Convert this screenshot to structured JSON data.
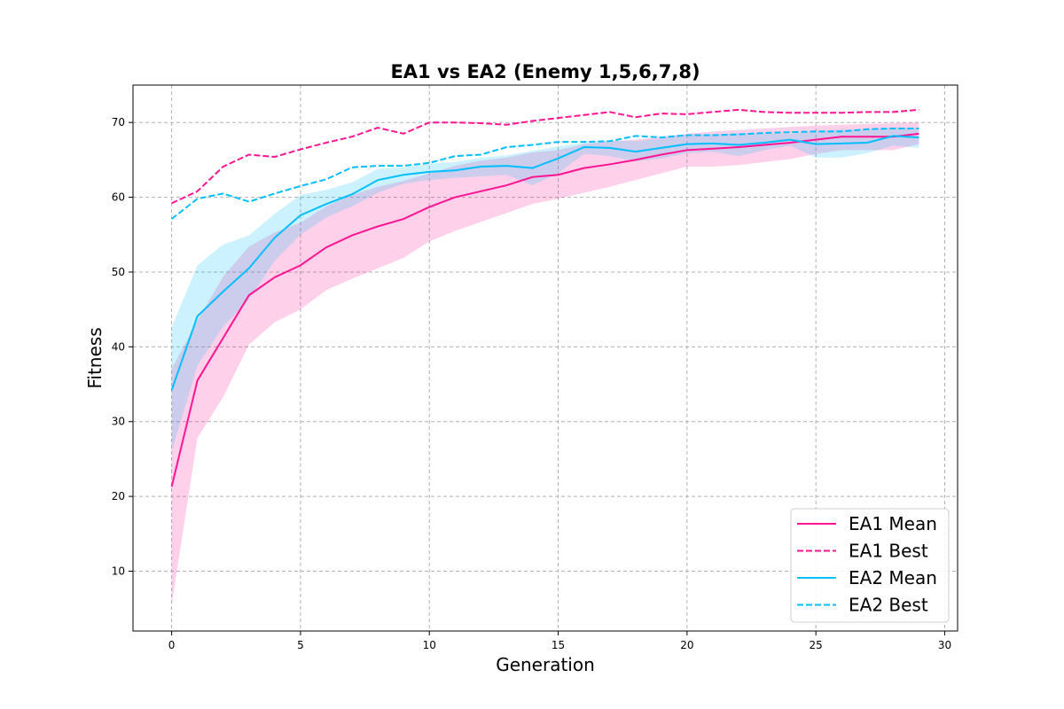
{
  "chart_data": {
    "type": "line",
    "title": "EA1 vs EA2 (Enemy 1,5,6,7,8)",
    "xlabel": "Generation",
    "ylabel": "Fitness",
    "xlim": [
      -1.5,
      30.5
    ],
    "ylim": [
      2,
      75
    ],
    "xticks": [
      0,
      5,
      10,
      15,
      20,
      25,
      30
    ],
    "yticks": [
      10,
      20,
      30,
      40,
      50,
      60,
      70
    ],
    "grid": true,
    "legend_position": "bottom-right",
    "x": [
      0,
      1,
      2,
      3,
      4,
      5,
      6,
      7,
      8,
      9,
      10,
      11,
      12,
      13,
      14,
      15,
      16,
      17,
      18,
      19,
      20,
      21,
      22,
      23,
      24,
      25,
      26,
      27,
      28,
      29
    ],
    "series": [
      {
        "name": "EA1 Mean",
        "style": "solid",
        "color": "#ff1493",
        "values": [
          21.3,
          35.5,
          41.2,
          46.9,
          49.3,
          50.9,
          53.3,
          54.9,
          56.1,
          57.1,
          58.7,
          60.0,
          60.8,
          61.6,
          62.7,
          63.0,
          63.9,
          64.4,
          65.0,
          65.7,
          66.3,
          66.5,
          66.7,
          67.0,
          67.3,
          67.7,
          68.1,
          68.1,
          68.1,
          68.5
        ],
        "band_low": [
          5.5,
          27.8,
          33.3,
          40.3,
          43.3,
          45.0,
          47.6,
          49.1,
          50.5,
          51.9,
          54.1,
          55.5,
          56.7,
          57.9,
          59.1,
          59.8,
          60.6,
          61.4,
          62.3,
          63.2,
          64.1,
          64.1,
          64.3,
          64.7,
          65.1,
          65.8,
          66.3,
          66.3,
          66.3,
          67.1
        ],
        "band_high": [
          37.0,
          43.5,
          49.4,
          53.4,
          55.3,
          56.6,
          58.8,
          60.3,
          61.4,
          62.2,
          63.2,
          64.2,
          64.9,
          65.3,
          66.0,
          66.3,
          67.1,
          67.5,
          67.7,
          68.1,
          68.5,
          68.8,
          69.0,
          69.2,
          69.4,
          69.6,
          69.7,
          69.8,
          69.9,
          70.0
        ]
      },
      {
        "name": "EA1 Best",
        "style": "dashed",
        "color": "#ff1493",
        "values": [
          59.2,
          60.8,
          64.1,
          65.7,
          65.4,
          66.4,
          67.3,
          68.1,
          69.3,
          68.5,
          70.0,
          70.0,
          69.9,
          69.7,
          70.2,
          70.6,
          71.0,
          71.4,
          70.7,
          71.2,
          71.1,
          71.4,
          71.7,
          71.4,
          71.3,
          71.3,
          71.3,
          71.4,
          71.4,
          71.7
        ]
      },
      {
        "name": "EA2 Mean",
        "style": "solid",
        "color": "#00bfff",
        "values": [
          34.2,
          44.1,
          47.4,
          50.5,
          54.6,
          57.6,
          59.1,
          60.4,
          62.3,
          63.0,
          63.4,
          63.6,
          64.1,
          64.2,
          63.9,
          65.2,
          66.7,
          66.6,
          66.1,
          66.6,
          67.1,
          67.2,
          67.0,
          67.3,
          67.7,
          67.1,
          67.2,
          67.3,
          68.2,
          68.0
        ],
        "band_low": [
          26.0,
          37.5,
          42.7,
          46.3,
          51.5,
          55.0,
          57.3,
          58.8,
          60.6,
          61.8,
          62.3,
          62.6,
          62.8,
          63.0,
          61.6,
          63.2,
          65.8,
          65.5,
          64.8,
          65.2,
          65.9,
          66.1,
          65.5,
          66.3,
          66.9,
          65.3,
          65.3,
          65.9,
          66.9,
          66.6
        ],
        "band_high": [
          42.6,
          50.9,
          53.7,
          54.9,
          57.8,
          60.3,
          61.0,
          62.0,
          63.8,
          64.0,
          64.5,
          64.7,
          65.3,
          65.6,
          66.2,
          66.8,
          67.3,
          67.6,
          67.5,
          67.9,
          68.4,
          68.4,
          68.6,
          68.5,
          68.5,
          68.8,
          69.1,
          69.0,
          69.3,
          69.3
        ]
      },
      {
        "name": "EA2 Best",
        "style": "dashed",
        "color": "#00bfff",
        "values": [
          57.1,
          59.8,
          60.5,
          59.4,
          60.5,
          61.5,
          62.4,
          64.0,
          64.2,
          64.2,
          64.6,
          65.5,
          65.7,
          66.7,
          67.0,
          67.4,
          67.4,
          67.5,
          68.2,
          68.0,
          68.3,
          68.3,
          68.4,
          68.6,
          68.7,
          68.8,
          68.8,
          69.1,
          69.2,
          69.2
        ]
      }
    ]
  }
}
